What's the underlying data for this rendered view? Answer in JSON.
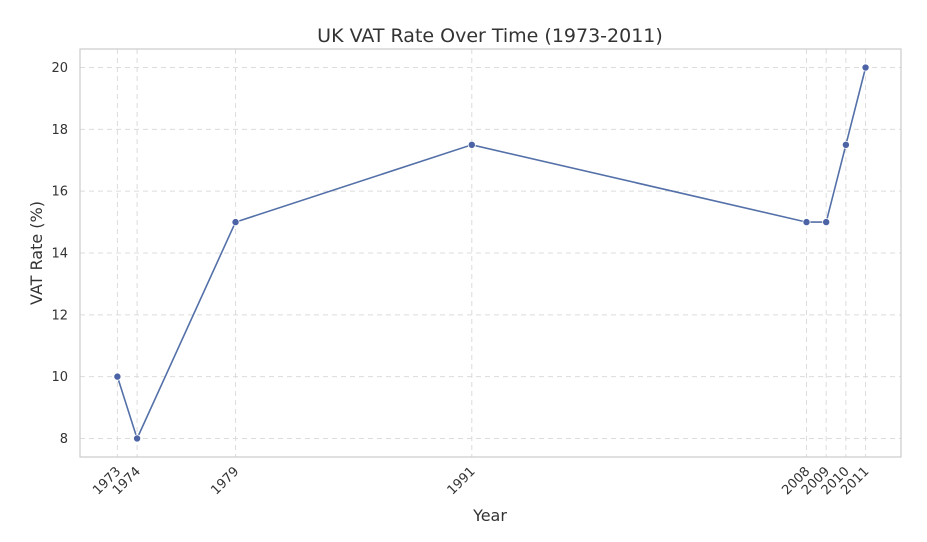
{
  "chart_data": {
    "type": "line",
    "title": "UK VAT Rate Over Time (1973-2011)",
    "xlabel": "Year",
    "ylabel": "VAT Rate (%)",
    "x": [
      1973,
      1974,
      1979,
      1991,
      2008,
      2009,
      2010,
      2011
    ],
    "x_tick_labels": [
      "1973",
      "1974",
      "1979",
      "1991",
      "2008",
      "2009",
      "2010",
      "2011"
    ],
    "y_ticks": [
      8,
      10,
      12,
      14,
      16,
      18,
      20
    ],
    "series": [
      {
        "values": [
          10,
          8,
          15,
          17.5,
          15,
          15,
          17.5,
          20
        ]
      }
    ],
    "xlim": [
      1971.1,
      2012.8
    ],
    "ylim": [
      7.4,
      20.6
    ],
    "grid": true,
    "colors": {
      "line": "#5470a8",
      "point": "#4c63a6",
      "grid": "#dcdcdc",
      "frame": "#cccccc"
    }
  }
}
